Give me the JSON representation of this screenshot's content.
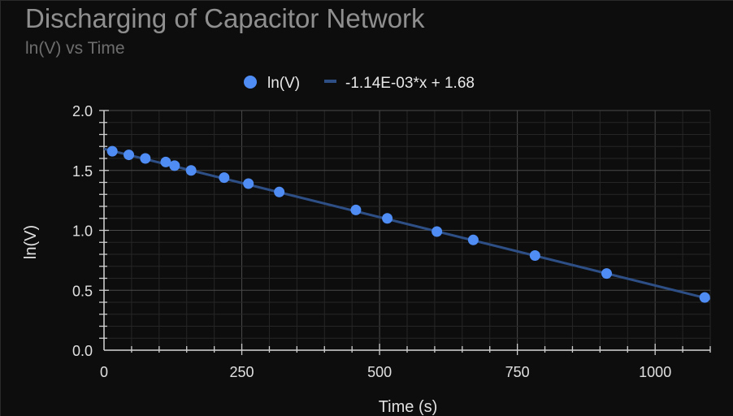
{
  "chart_data": {
    "type": "scatter",
    "title": "Discharging of Capacitor Network",
    "subtitle": "ln(V) vs Time",
    "xlabel": "Time (s)",
    "ylabel": "ln(V)",
    "xlim": [
      0,
      1100
    ],
    "ylim": [
      0,
      2.0
    ],
    "xticks": [
      0,
      250,
      500,
      750,
      1000
    ],
    "yticks": [
      0.0,
      0.5,
      1.0,
      1.5,
      2.0
    ],
    "ytick_labels": [
      "0.0",
      "0.5",
      "1.0",
      "1.5",
      "2.0"
    ],
    "grid": true,
    "legend_position": "top-center",
    "series": [
      {
        "name": "ln(V)",
        "kind": "scatter",
        "color": "#4f8df5",
        "x": [
          15,
          45,
          75,
          112,
          128,
          158,
          218,
          262,
          318,
          457,
          514,
          604,
          670,
          782,
          912,
          1090
        ],
        "y": [
          1.66,
          1.63,
          1.6,
          1.57,
          1.54,
          1.5,
          1.44,
          1.39,
          1.32,
          1.17,
          1.1,
          0.99,
          0.92,
          0.79,
          0.64,
          0.44
        ]
      },
      {
        "name": "-1.14E-03*x + 1.68",
        "kind": "line",
        "color": "#2d4f86",
        "slope": -0.00114,
        "intercept": 1.68
      }
    ]
  }
}
